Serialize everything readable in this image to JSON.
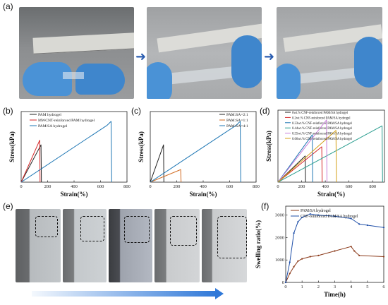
{
  "panel_labels": {
    "a": "(a)",
    "b": "(b)",
    "c": "(c)",
    "d": "(d)",
    "e": "(e)",
    "f": "(f)"
  },
  "chart_data": [
    {
      "id": "b",
      "type": "line",
      "xlabel": "Strain(%)",
      "ylabel": "Stress(kPa)",
      "xticks": [
        "0",
        "200",
        "400",
        "600",
        "800"
      ],
      "xlim": [
        0,
        800
      ],
      "ylim": [
        0,
        18
      ],
      "legend_position": "top-left",
      "series": [
        {
          "name": "PAM hydrogel",
          "color": "#222222",
          "x": [
            0,
            150,
            153
          ],
          "y": [
            0,
            9.5,
            0
          ]
        },
        {
          "name": "MWCNT-reinforced PAM hydrogel",
          "color": "#d62728",
          "x": [
            0,
            140,
            143
          ],
          "y": [
            0,
            10.7,
            0
          ]
        },
        {
          "name": "PAM/SA hydrogel",
          "color": "#1f77b4",
          "x": [
            0,
            650,
            680,
            684
          ],
          "y": [
            0,
            14.5,
            15.5,
            0
          ]
        }
      ]
    },
    {
      "id": "c",
      "type": "line",
      "xlabel": "Strain(%)",
      "ylabel": "Stress(kPa)",
      "xticks": [
        "0",
        "200",
        "400",
        "600",
        "800"
      ],
      "xlim": [
        0,
        800
      ],
      "ylim": [
        0,
        18
      ],
      "legend_position": "top-left",
      "series": [
        {
          "name": "PAM:SA=2:1",
          "color": "#222222",
          "x": [
            0,
            100,
            103
          ],
          "y": [
            0,
            9.5,
            0
          ]
        },
        {
          "name": "PAM:SA=1:1",
          "color": "#d2691e",
          "x": [
            0,
            230,
            233
          ],
          "y": [
            0,
            3.2,
            0
          ]
        },
        {
          "name": "PAM:SA=4:1",
          "color": "#1f77b4",
          "x": [
            0,
            650,
            680,
            684
          ],
          "y": [
            0,
            14.5,
            15.5,
            0
          ]
        }
      ]
    },
    {
      "id": "d",
      "type": "line",
      "xlabel": "Strain(%)",
      "ylabel": "Stress(kPa)",
      "xticks": [
        "0",
        "200",
        "400",
        "600",
        "800"
      ],
      "xlim": [
        0,
        900
      ],
      "ylim": [
        0,
        22
      ],
      "legend_position": "top-left",
      "series": [
        {
          "name": "0wt.% CNF-reinforced PAM/SA hydrogel",
          "color": "#222222",
          "x": [
            0,
            230,
            233
          ],
          "y": [
            0,
            8.0,
            0
          ]
        },
        {
          "name": "0.2wt.% CNF-reinforced PAM/SA hydrogel",
          "color": "#d62728",
          "x": [
            0,
            370,
            374
          ],
          "y": [
            0,
            10.8,
            0
          ]
        },
        {
          "name": "0.33wt.% CNF-reinforced PAM/SA hydrogel",
          "color": "#1f77b4",
          "x": [
            0,
            290,
            294
          ],
          "y": [
            0,
            14.5,
            0
          ]
        },
        {
          "name": "0.44wt.% CNF-reinforced PAM/SA hydrogel",
          "color": "#2a9d8f",
          "x": [
            0,
            880,
            884
          ],
          "y": [
            0,
            17.2,
            0
          ]
        },
        {
          "name": "0.55wt.% CNF-reinforced PAM/SA hydrogel",
          "color": "#c77dd9",
          "x": [
            0,
            410,
            414
          ],
          "y": [
            0,
            19.0,
            0
          ]
        },
        {
          "name": "0.66wt.% CNF-reinforced PAM/SA hydrogel",
          "color": "#d4a017",
          "x": [
            0,
            490,
            494
          ],
          "y": [
            0,
            15.8,
            0
          ]
        }
      ]
    },
    {
      "id": "f",
      "type": "line",
      "xlabel": "Time(h)",
      "ylabel": "Swelling ratio(%)",
      "xticks": [
        "0",
        "1",
        "2",
        "3",
        "4",
        "5",
        "6"
      ],
      "yticks": [
        "0",
        "1000",
        "2000",
        "3000"
      ],
      "xlim": [
        0,
        6
      ],
      "ylim": [
        0,
        3400
      ],
      "legend_position": "top-left",
      "series": [
        {
          "name": "PAM/SA hydrogel",
          "color": "#8b3a1a",
          "x": [
            0,
            0.25,
            0.5,
            0.75,
            1,
            1.5,
            2,
            3,
            4,
            4.2,
            4.5,
            6
          ],
          "y": [
            0,
            400,
            700,
            950,
            1050,
            1150,
            1200,
            1400,
            1600,
            1400,
            1200,
            1150
          ]
        },
        {
          "name": "CNF-reinforced PAM/SA hydrogel",
          "color": "#1f4fa8",
          "x": [
            0,
            0.25,
            0.5,
            0.75,
            1,
            1.5,
            2,
            3,
            4,
            4.5,
            5,
            6
          ],
          "y": [
            0,
            900,
            2200,
            2700,
            2900,
            3050,
            3000,
            2950,
            2850,
            2600,
            2550,
            2450
          ]
        }
      ]
    }
  ]
}
